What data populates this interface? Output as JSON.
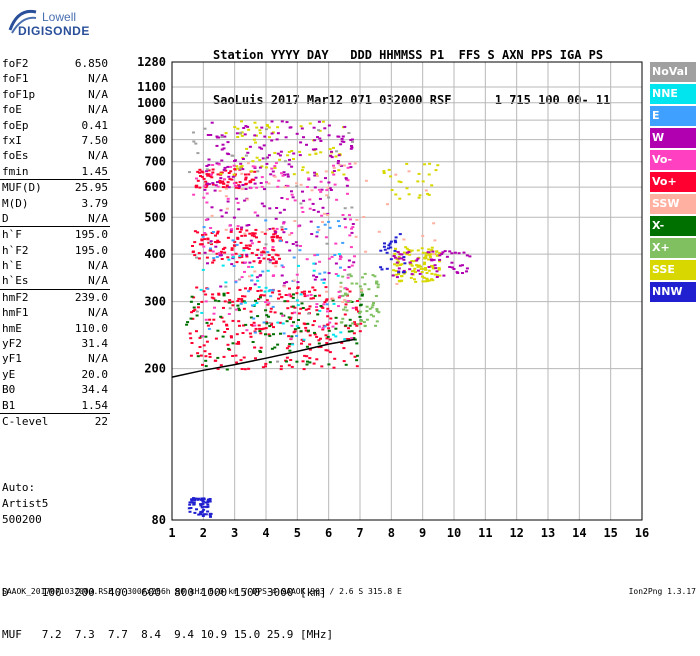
{
  "logo": {
    "line1": "Lowell",
    "line2": "DIGISONDE"
  },
  "header": {
    "line1": "Station YYYY DAY   DDD HHMMSS P1  FFS S AXN PPS IGA PS",
    "line2": "SaoLuis 2017 Mar12 071 032000 RSF      1 715 100 00- 11"
  },
  "params": [
    {
      "label": "foF2",
      "value": "6.850"
    },
    {
      "label": "foF1",
      "value": "N/A"
    },
    {
      "label": "foF1p",
      "value": "N/A"
    },
    {
      "label": "foE",
      "value": "N/A"
    },
    {
      "label": "foEp",
      "value": "0.41"
    },
    {
      "label": "fxI",
      "value": "7.50"
    },
    {
      "label": "foEs",
      "value": "N/A"
    },
    {
      "label": "fmin",
      "value": "1.45"
    },
    {
      "label": "MUF(D)",
      "value": "25.95",
      "sep": true
    },
    {
      "label": "M(D)",
      "value": "3.79"
    },
    {
      "label": "D",
      "value": "N/A"
    },
    {
      "label": "h`F",
      "value": "195.0",
      "sep": true
    },
    {
      "label": "h`F2",
      "value": "195.0"
    },
    {
      "label": "h`E",
      "value": "N/A"
    },
    {
      "label": "h`Es",
      "value": "N/A"
    },
    {
      "label": "hmF2",
      "value": "239.0",
      "sep": true
    },
    {
      "label": "hmF1",
      "value": "N/A"
    },
    {
      "label": "hmE",
      "value": "110.0"
    },
    {
      "label": "yF2",
      "value": "31.4"
    },
    {
      "label": "yF1",
      "value": "N/A"
    },
    {
      "label": "yE",
      "value": "20.0"
    },
    {
      "label": "B0",
      "value": "34.4"
    },
    {
      "label": "B1",
      "value": "1.54"
    },
    {
      "label": "C-level",
      "value": "22",
      "sep": true
    }
  ],
  "notes": {
    "auto": "Auto:",
    "artist": "Artist5",
    "code": "500200"
  },
  "muf_table": {
    "line1": "D     100  200  400  600  800 1000 1500 3000 [km]",
    "line2": "MUF   7.2  7.3  7.7  8.4  9.4 10.9 15.0 25.9 [MHz]"
  },
  "footer": "SAAOK_2017071032000.RSF / 300fx256h 50 kHz 5.0 km / DPS-4 SAAOK 903 / 2.6 S 315.8 E",
  "version": "Ion2Png 1.3.17",
  "legend": [
    {
      "label": "NoVal",
      "color": "#a0a0a0"
    },
    {
      "label": "NNE",
      "color": "#00e5ee"
    },
    {
      "label": "E",
      "color": "#3fa0ff"
    },
    {
      "label": "W",
      "color": "#b000b0"
    },
    {
      "label": "Vo-",
      "color": "#ff40c0"
    },
    {
      "label": "Vo+",
      "color": "#ff0030"
    },
    {
      "label": "SSW",
      "color": "#ffb0a0"
    },
    {
      "label": "X-",
      "color": "#007000"
    },
    {
      "label": "X+",
      "color": "#80c060"
    },
    {
      "label": "SSE",
      "color": "#d8d800"
    },
    {
      "label": "NNW",
      "color": "#2020d0"
    }
  ],
  "chart_data": {
    "type": "scatter",
    "title": "",
    "xlabel": "",
    "ylabel": "",
    "xlim": [
      1,
      16
    ],
    "ylim": [
      80,
      1280
    ],
    "x_ticks": [
      1,
      2,
      3,
      4,
      5,
      6,
      7,
      8,
      9,
      10,
      11,
      12,
      13,
      14,
      15,
      16
    ],
    "y_ticks": [
      80,
      200,
      300,
      400,
      500,
      600,
      700,
      800,
      900,
      1000,
      1100,
      1280
    ],
    "y_scale": "log",
    "grid": true,
    "legend_position": "right",
    "clusters": [
      {
        "name": "Vo+",
        "color": "#ff0030",
        "x": [
          1.5,
          7.0
        ],
        "y": [
          200,
          330
        ],
        "n": 260
      },
      {
        "name": "Vo+",
        "color": "#ff0030",
        "x": [
          1.6,
          4.5
        ],
        "y": [
          380,
          470
        ],
        "n": 120
      },
      {
        "name": "Vo+",
        "color": "#ff0030",
        "x": [
          1.7,
          3.6
        ],
        "y": [
          600,
          680
        ],
        "n": 70
      },
      {
        "name": "X-",
        "color": "#007000",
        "x": [
          1.4,
          7.2
        ],
        "y": [
          200,
          320
        ],
        "n": 110
      },
      {
        "name": "X+",
        "color": "#80c060",
        "x": [
          6.3,
          7.6
        ],
        "y": [
          260,
          360
        ],
        "n": 60
      },
      {
        "name": "SSE",
        "color": "#d8d800",
        "x": [
          8.0,
          9.5
        ],
        "y": [
          340,
          420
        ],
        "n": 110
      },
      {
        "name": "SSE",
        "color": "#d8d800",
        "x": [
          2.5,
          6.5
        ],
        "y": [
          650,
          900
        ],
        "n": 70
      },
      {
        "name": "SSE",
        "color": "#d8d800",
        "x": [
          7.6,
          9.5
        ],
        "y": [
          560,
          700
        ],
        "n": 25
      },
      {
        "name": "W",
        "color": "#b000b0",
        "x": [
          2.0,
          6.8
        ],
        "y": [
          330,
          900
        ],
        "n": 230
      },
      {
        "name": "W",
        "color": "#b000b0",
        "x": [
          8.0,
          10.5
        ],
        "y": [
          350,
          410
        ],
        "n": 60
      },
      {
        "name": "Vo-",
        "color": "#ff40c0",
        "x": [
          1.6,
          6.8
        ],
        "y": [
          240,
          700
        ],
        "n": 140
      },
      {
        "name": "E",
        "color": "#3fa0ff",
        "x": [
          1.8,
          6.5
        ],
        "y": [
          220,
          500
        ],
        "n": 50
      },
      {
        "name": "NNE",
        "color": "#00e5ee",
        "x": [
          1.8,
          6.5
        ],
        "y": [
          230,
          420
        ],
        "n": 40
      },
      {
        "name": "NNW",
        "color": "#2020d0",
        "x": [
          1.5,
          2.2
        ],
        "y": [
          82,
          92
        ],
        "n": 60
      },
      {
        "name": "NNW",
        "color": "#2020d0",
        "x": [
          7.6,
          8.4
        ],
        "y": [
          360,
          480
        ],
        "n": 25
      },
      {
        "name": "SSW",
        "color": "#ffb0a0",
        "x": [
          2.0,
          9.5
        ],
        "y": [
          300,
          700
        ],
        "n": 60
      },
      {
        "name": "NoVal",
        "color": "#a0a0a0",
        "x": [
          1.5,
          7.0
        ],
        "y": [
          200,
          900
        ],
        "n": 40
      }
    ],
    "trace_curve": {
      "x": [
        1.0,
        2.0,
        3.0,
        4.0,
        5.0,
        6.0,
        6.85
      ],
      "y": [
        190,
        198,
        205,
        213,
        222,
        232,
        239
      ]
    }
  }
}
